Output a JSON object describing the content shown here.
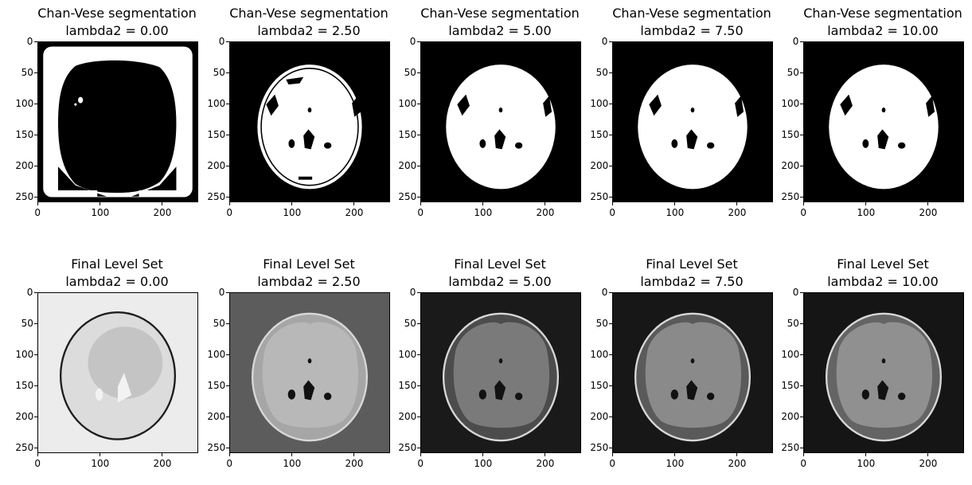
{
  "figure": {
    "rows": [
      {
        "kind": "segmentation",
        "panels": [
          {
            "title": "Chan-Vese segmentation",
            "subtitle": "lambda2 = 0.00"
          },
          {
            "title": "Chan-Vese segmentation",
            "subtitle": "lambda2 = 2.50"
          },
          {
            "title": "Chan-Vese segmentation",
            "subtitle": "lambda2 = 5.00"
          },
          {
            "title": "Chan-Vese segmentation",
            "subtitle": "lambda2 = 7.50"
          },
          {
            "title": "Chan-Vese segmentation",
            "subtitle": "lambda2 = 10.00"
          }
        ]
      },
      {
        "kind": "level_set",
        "panels": [
          {
            "title": "Final Level Set",
            "subtitle": "lambda2 = 0.00"
          },
          {
            "title": "Final Level Set",
            "subtitle": "lambda2 = 2.50"
          },
          {
            "title": "Final Level Set",
            "subtitle": "lambda2 = 5.00"
          },
          {
            "title": "Final Level Set",
            "subtitle": "lambda2 = 7.50"
          },
          {
            "title": "Final Level Set",
            "subtitle": "lambda2 = 10.00"
          }
        ]
      }
    ],
    "x_ticks": [
      "0",
      "100",
      "200"
    ],
    "y_ticks": [
      "0",
      "50",
      "100",
      "150",
      "200",
      "250"
    ],
    "colormap": "gray"
  }
}
